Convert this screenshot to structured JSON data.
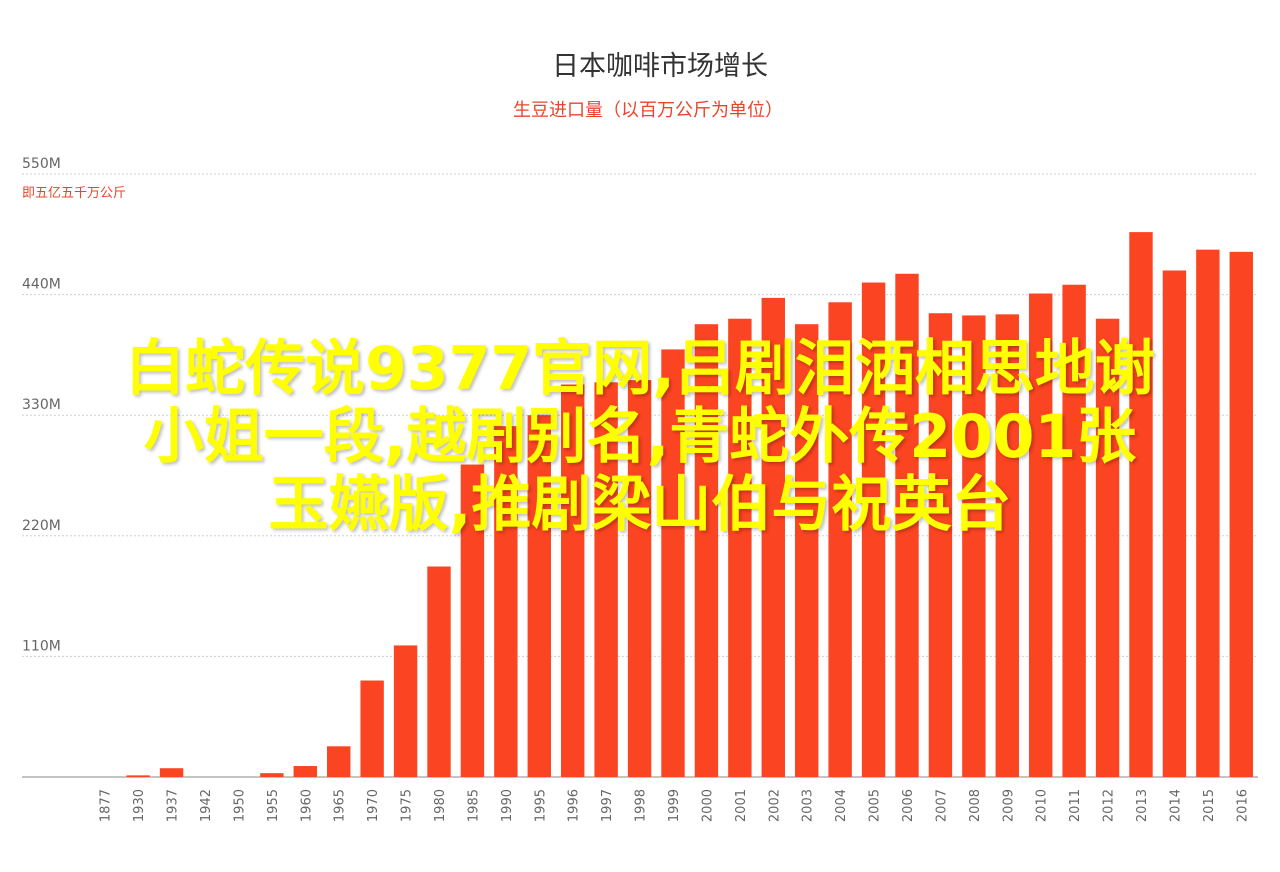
{
  "colors": {
    "bar": "#fb4422",
    "title": "#333333",
    "subtitle": "#e8452c",
    "grid": "#cfcfcf",
    "overlay": "#ffff00"
  },
  "chart_data": {
    "type": "bar",
    "title": "日本咖啡市场增长",
    "subtitle": "生豆进口量（以百万公斤为单位）",
    "unit_note": "即五亿五千万公斤",
    "ylim": [
      0,
      550
    ],
    "yticks": [
      {
        "value": 110,
        "label": "110M"
      },
      {
        "value": 220,
        "label": "220M"
      },
      {
        "value": 330,
        "label": "330M"
      },
      {
        "value": 440,
        "label": "440M"
      },
      {
        "value": 550,
        "label": "550M"
      }
    ],
    "grid": true,
    "categories": [
      "1877",
      "1930",
      "1937",
      "1942",
      "1950",
      "1955",
      "1960",
      "1965",
      "1970",
      "1975",
      "1980",
      "1985",
      "1990",
      "1995",
      "1996",
      "1997",
      "1998",
      "1999",
      "2000",
      "2001",
      "2002",
      "2003",
      "2004",
      "2005",
      "2006",
      "2007",
      "2008",
      "2009",
      "2010",
      "2011",
      "2012",
      "2013",
      "2014",
      "2015",
      "2016"
    ],
    "values": [
      0,
      1.5,
      8,
      0,
      0,
      3.5,
      10,
      28,
      88,
      120,
      192,
      285,
      320,
      330,
      358,
      360,
      362,
      390,
      413,
      418,
      437,
      413,
      433,
      451,
      459,
      423,
      421,
      422,
      441,
      449,
      418,
      497,
      462,
      481,
      479
    ]
  },
  "overlay": {
    "lines": [
      "白蛇传说9377官网,吕剧泪洒相思地谢",
      "小姐一段,越剧别名,青蛇外传2001张",
      "玉嬿版,推剧梁山伯与祝英台"
    ]
  }
}
